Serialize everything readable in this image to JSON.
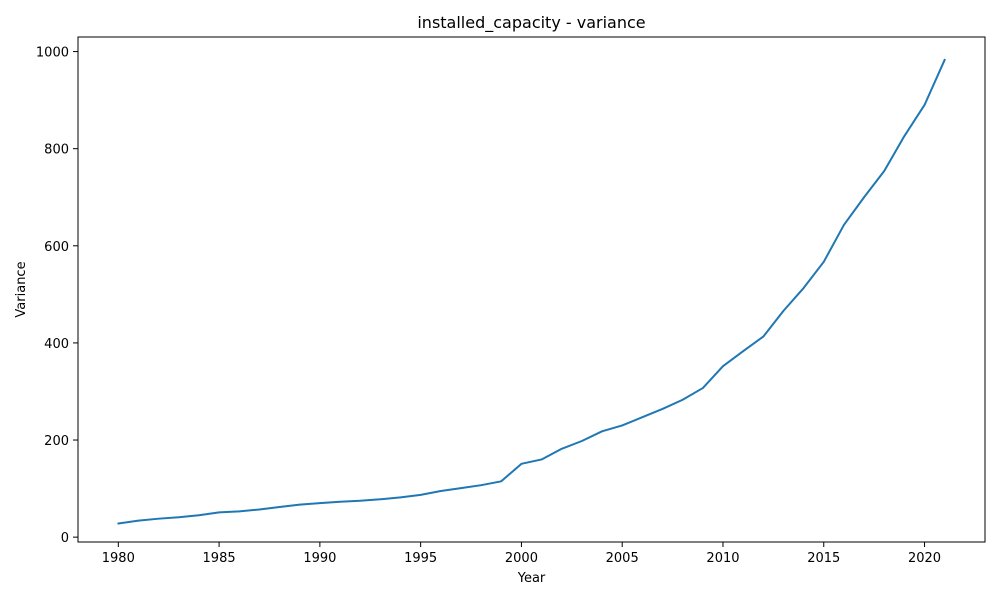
{
  "chart_data": {
    "type": "line",
    "title": "installed_capacity - variance",
    "xlabel": "Year",
    "ylabel": "Variance",
    "xlim": [
      1978,
      2023
    ],
    "ylim": [
      -10,
      1030
    ],
    "grid": false,
    "legend": "none",
    "x_ticks": [
      1980,
      1985,
      1990,
      1995,
      2000,
      2005,
      2010,
      2015,
      2020
    ],
    "y_ticks": [
      0,
      200,
      400,
      600,
      800,
      1000
    ],
    "series": [
      {
        "color": "#1f77b4",
        "x": [
          1980,
          1981,
          1982,
          1983,
          1984,
          1985,
          1986,
          1987,
          1988,
          1989,
          1990,
          1991,
          1992,
          1993,
          1994,
          1995,
          1996,
          1997,
          1998,
          1999,
          2000,
          2001,
          2002,
          2003,
          2004,
          2005,
          2006,
          2007,
          2008,
          2009,
          2010,
          2011,
          2012,
          2013,
          2014,
          2015,
          2016,
          2017,
          2018,
          2019,
          2020,
          2021
        ],
        "y": [
          28,
          34,
          38,
          41,
          45,
          51,
          53,
          57,
          62,
          67,
          70,
          73,
          75,
          78,
          82,
          87,
          95,
          101,
          107,
          115,
          151,
          160,
          182,
          198,
          218,
          230,
          247,
          264,
          283,
          307,
          352,
          383,
          413,
          466,
          513,
          567,
          643,
          700,
          754,
          826,
          890,
          983
        ]
      }
    ]
  }
}
